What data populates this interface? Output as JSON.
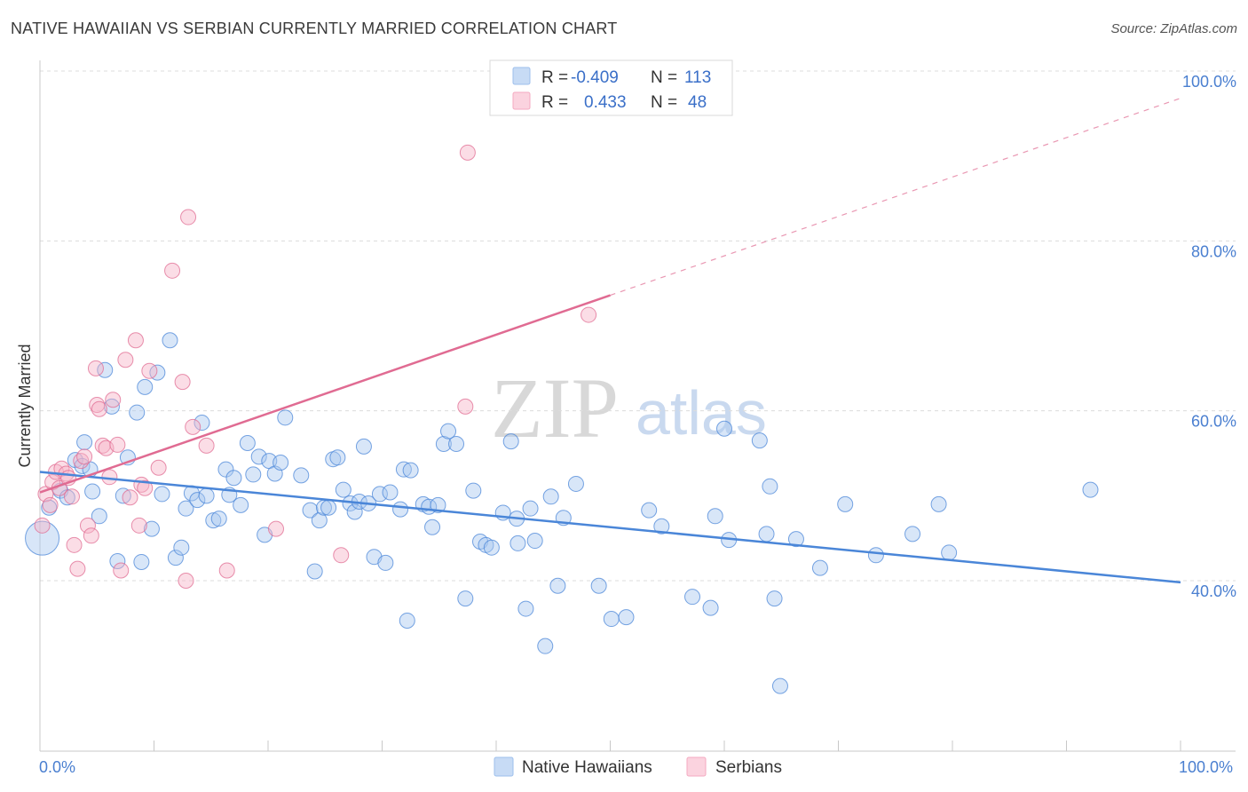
{
  "header": {
    "title": "NATIVE HAWAIIAN VS SERBIAN CURRENTLY MARRIED CORRELATION CHART",
    "source": "Source: ZipAtlas.com"
  },
  "watermark": {
    "zip": "ZIP",
    "atlas": "atlas"
  },
  "legend_top": {
    "rows": [
      {
        "r_label": "R =",
        "r_value": "-0.409",
        "n_label": "N =",
        "n_value": "113",
        "color": "#9dbfec"
      },
      {
        "r_label": "R =",
        "r_value": "0.433",
        "n_label": "N =",
        "n_value": "48",
        "color": "#f4aac0"
      }
    ]
  },
  "legend_bottom": {
    "items": [
      {
        "label": "Native Hawaiians",
        "color": "#9dbfec"
      },
      {
        "label": "Serbians",
        "color": "#f4aac0"
      }
    ]
  },
  "chart_data": {
    "type": "scatter",
    "title": "NATIVE HAWAIIAN VS SERBIAN CURRENTLY MARRIED CORRELATION CHART",
    "xlabel": "",
    "ylabel": "Currently Married",
    "xlim": [
      0,
      100
    ],
    "ylim": [
      20,
      103
    ],
    "x_tick_labels": [
      "0.0%",
      "100.0%"
    ],
    "y_ticks": [
      40,
      60,
      80,
      100
    ],
    "y_tick_labels": [
      "40.0%",
      "60.0%",
      "80.0%",
      "100.0%"
    ],
    "grid": true,
    "legend_position": "top-center",
    "series": [
      {
        "name": "Native Hawaiians",
        "color": "#4a86d8",
        "fill": "#a9c8f0",
        "r": -0.409,
        "n": 113,
        "trend": {
          "x": [
            0,
            100
          ],
          "y": [
            52.8,
            39.8
          ],
          "dashed_from": null
        },
        "points": [
          [
            0.2,
            45
          ],
          [
            0.8,
            48.6
          ],
          [
            1.8,
            50.6
          ],
          [
            2.4,
            49.8
          ],
          [
            3.1,
            54.2
          ],
          [
            3.7,
            53.5
          ],
          [
            3.9,
            56.3
          ],
          [
            4.4,
            53.1
          ],
          [
            4.6,
            50.5
          ],
          [
            5.2,
            47.6
          ],
          [
            5.7,
            64.8
          ],
          [
            6.3,
            60.5
          ],
          [
            6.8,
            42.3
          ],
          [
            7.3,
            50
          ],
          [
            7.7,
            54.5
          ],
          [
            8.5,
            59.8
          ],
          [
            8.9,
            42.2
          ],
          [
            9.2,
            62.8
          ],
          [
            9.8,
            46.1
          ],
          [
            10.3,
            64.5
          ],
          [
            10.7,
            50.2
          ],
          [
            11.4,
            68.3
          ],
          [
            11.9,
            42.7
          ],
          [
            12.4,
            43.9
          ],
          [
            12.8,
            48.5
          ],
          [
            13.3,
            50.3
          ],
          [
            13.8,
            49.5
          ],
          [
            14.2,
            58.6
          ],
          [
            14.6,
            50
          ],
          [
            15.2,
            47.1
          ],
          [
            15.7,
            47.3
          ],
          [
            16.3,
            53.1
          ],
          [
            16.6,
            50.1
          ],
          [
            17.0,
            52.1
          ],
          [
            17.6,
            48.9
          ],
          [
            18.2,
            56.2
          ],
          [
            18.7,
            52.5
          ],
          [
            19.2,
            54.6
          ],
          [
            19.7,
            45.4
          ],
          [
            20.1,
            54.1
          ],
          [
            20.6,
            52.6
          ],
          [
            21.1,
            53.9
          ],
          [
            21.5,
            59.2
          ],
          [
            22.9,
            52.4
          ],
          [
            23.7,
            48.3
          ],
          [
            24.1,
            41.1
          ],
          [
            24.5,
            47.1
          ],
          [
            24.9,
            48.6
          ],
          [
            25.3,
            48.6
          ],
          [
            25.7,
            54.3
          ],
          [
            26.1,
            54.5
          ],
          [
            26.6,
            50.7
          ],
          [
            27.2,
            49.1
          ],
          [
            27.6,
            48.1
          ],
          [
            28.0,
            49.3
          ],
          [
            28.4,
            55.8
          ],
          [
            28.8,
            49.1
          ],
          [
            29.3,
            42.8
          ],
          [
            29.8,
            50.2
          ],
          [
            30.3,
            42.1
          ],
          [
            30.7,
            50.4
          ],
          [
            31.6,
            48.4
          ],
          [
            31.9,
            53.1
          ],
          [
            32.2,
            35.3
          ],
          [
            32.5,
            53.0
          ],
          [
            33.6,
            49.0
          ],
          [
            34.1,
            48.7
          ],
          [
            34.4,
            46.3
          ],
          [
            34.9,
            48.9
          ],
          [
            35.4,
            56.1
          ],
          [
            35.8,
            57.6
          ],
          [
            36.5,
            56.1
          ],
          [
            37.3,
            37.9
          ],
          [
            38.0,
            50.6
          ],
          [
            38.6,
            44.6
          ],
          [
            39.1,
            44.2
          ],
          [
            39.6,
            43.9
          ],
          [
            40.6,
            48.0
          ],
          [
            41.3,
            56.4
          ],
          [
            41.8,
            47.3
          ],
          [
            41.9,
            44.4
          ],
          [
            42.6,
            36.7
          ],
          [
            43.0,
            48.5
          ],
          [
            43.4,
            44.7
          ],
          [
            44.3,
            32.3
          ],
          [
            44.8,
            49.9
          ],
          [
            45.4,
            39.4
          ],
          [
            45.9,
            47.4
          ],
          [
            47.0,
            51.4
          ],
          [
            49.0,
            39.4
          ],
          [
            50.1,
            35.5
          ],
          [
            51.4,
            35.7
          ],
          [
            53.4,
            48.3
          ],
          [
            54.5,
            46.4
          ],
          [
            57.2,
            38.1
          ],
          [
            58.8,
            36.8
          ],
          [
            59.2,
            47.6
          ],
          [
            60.0,
            57.9
          ],
          [
            60.4,
            44.8
          ],
          [
            63.1,
            56.5
          ],
          [
            63.7,
            45.5
          ],
          [
            64.0,
            51.1
          ],
          [
            64.4,
            37.9
          ],
          [
            64.9,
            27.6
          ],
          [
            66.3,
            44.9
          ],
          [
            68.4,
            41.5
          ],
          [
            70.6,
            49.0
          ],
          [
            73.3,
            43.0
          ],
          [
            76.5,
            45.5
          ],
          [
            78.8,
            49.0
          ],
          [
            79.7,
            43.3
          ],
          [
            92.1,
            50.7
          ]
        ]
      },
      {
        "name": "Serbians",
        "color": "#e06b92",
        "fill": "#f6b4c8",
        "r": 0.433,
        "n": 48,
        "trend": {
          "x": [
            0,
            100
          ],
          "y": [
            50.4,
            96.8
          ],
          "dashed_from": 50
        },
        "points": [
          [
            0.2,
            46.5
          ],
          [
            0.5,
            50.2
          ],
          [
            0.9,
            48.9
          ],
          [
            1.1,
            51.6
          ],
          [
            1.4,
            52.8
          ],
          [
            1.7,
            50.9
          ],
          [
            1.9,
            53.2
          ],
          [
            2.3,
            52.6
          ],
          [
            2.5,
            52.1
          ],
          [
            2.8,
            49.9
          ],
          [
            3.0,
            44.2
          ],
          [
            3.3,
            41.4
          ],
          [
            3.6,
            54.1
          ],
          [
            3.9,
            54.6
          ],
          [
            4.2,
            46.5
          ],
          [
            4.5,
            45.3
          ],
          [
            4.9,
            65.0
          ],
          [
            5.0,
            60.7
          ],
          [
            5.2,
            60.2
          ],
          [
            5.5,
            55.9
          ],
          [
            5.8,
            55.6
          ],
          [
            6.1,
            52.2
          ],
          [
            6.4,
            61.3
          ],
          [
            6.8,
            56.0
          ],
          [
            7.1,
            41.2
          ],
          [
            7.5,
            66.0
          ],
          [
            7.9,
            49.8
          ],
          [
            8.4,
            68.3
          ],
          [
            8.7,
            46.5
          ],
          [
            8.9,
            51.3
          ],
          [
            9.2,
            50.9
          ],
          [
            9.6,
            64.7
          ],
          [
            10.4,
            53.3
          ],
          [
            11.6,
            76.5
          ],
          [
            12.5,
            63.4
          ],
          [
            12.8,
            40.0
          ],
          [
            13.0,
            82.8
          ],
          [
            13.4,
            58.1
          ],
          [
            14.6,
            55.9
          ],
          [
            16.4,
            41.2
          ],
          [
            20.7,
            46.1
          ],
          [
            26.4,
            43.0
          ],
          [
            37.3,
            60.5
          ],
          [
            37.5,
            90.4
          ],
          [
            48.1,
            71.3
          ]
        ]
      }
    ]
  }
}
